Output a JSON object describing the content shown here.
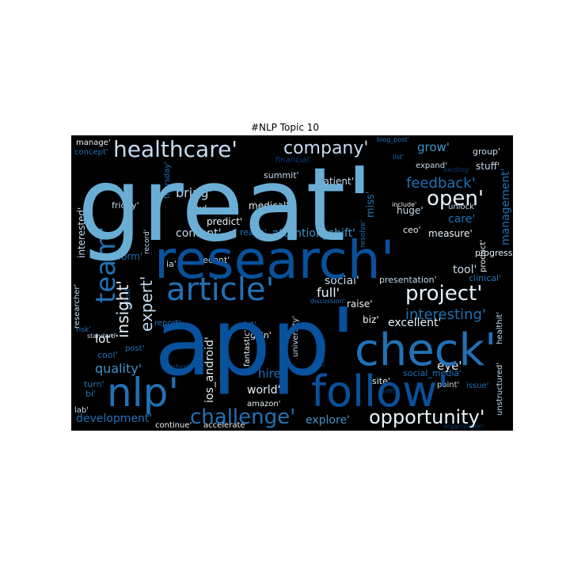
{
  "chart_data": {
    "type": "wordcloud",
    "title": "#NLP Topic 10",
    "background": "#000000",
    "palette": [
      "#eaf2f8",
      "#c6dbef",
      "#9ecae1",
      "#6baed6",
      "#4292c6",
      "#2171b5",
      "#08519c",
      "#084594",
      "#0b3e78",
      "#1c4f7d"
    ],
    "words": [
      {
        "text": "great'",
        "weight": 100,
        "color": "#6aaed6",
        "orientation": "horizontal"
      },
      {
        "text": "app'",
        "weight": 92,
        "color": "#08519c",
        "orientation": "horizontal"
      },
      {
        "text": "research'",
        "weight": 60,
        "color": "#08519c",
        "orientation": "horizontal"
      },
      {
        "text": "check'",
        "weight": 50,
        "color": "#2171b5",
        "orientation": "horizontal"
      },
      {
        "text": "follow'",
        "weight": 45,
        "color": "#08519c",
        "orientation": "horizontal"
      },
      {
        "text": "nlp'",
        "weight": 42,
        "color": "#2171b5",
        "orientation": "horizontal"
      },
      {
        "text": "article'",
        "weight": 35,
        "color": "#2171b5",
        "orientation": "horizontal"
      },
      {
        "text": "team'",
        "weight": 28,
        "color": "#2171b5",
        "orientation": "vertical"
      },
      {
        "text": "healthcare'",
        "weight": 24,
        "color": "#c6dbef",
        "orientation": "horizontal"
      },
      {
        "text": "company'",
        "weight": 20,
        "color": "#c6dbef",
        "orientation": "horizontal"
      },
      {
        "text": "open'",
        "weight": 22,
        "color": "#e8f1fa",
        "orientation": "horizontal"
      },
      {
        "text": "project'",
        "weight": 22,
        "color": "#e8f1fa",
        "orientation": "horizontal"
      },
      {
        "text": "opportunity'",
        "weight": 20,
        "color": "#eaf2f8",
        "orientation": "horizontal"
      },
      {
        "text": "challenge'",
        "weight": 20,
        "color": "#2171b5",
        "orientation": "horizontal"
      },
      {
        "text": "insight'",
        "weight": 18,
        "color": "#eaf2f8",
        "orientation": "vertical"
      },
      {
        "text": "expert'",
        "weight": 17,
        "color": "#c6dbef",
        "orientation": "vertical"
      },
      {
        "text": "feedback'",
        "weight": 16,
        "color": "#2171b5",
        "orientation": "horizontal"
      },
      {
        "text": "interesting'",
        "weight": 16,
        "color": "#2171b5",
        "orientation": "horizontal"
      },
      {
        "text": "grow'",
        "weight": 14,
        "color": "#4292c6",
        "orientation": "horizontal"
      },
      {
        "text": "bring'",
        "weight": 14,
        "color": "#c6dbef",
        "orientation": "horizontal"
      },
      {
        "text": "content'",
        "weight": 13,
        "color": "#c6dbef",
        "orientation": "horizontal"
      },
      {
        "text": "attention_shift'",
        "weight": 13,
        "color": "#4292c6",
        "orientation": "horizontal"
      },
      {
        "text": "full'",
        "weight": 13,
        "color": "#eaf2f8",
        "orientation": "horizontal"
      },
      {
        "text": "social'",
        "weight": 12,
        "color": "#c6dbef",
        "orientation": "horizontal"
      },
      {
        "text": "quality'",
        "weight": 12,
        "color": "#4292c6",
        "orientation": "horizontal"
      },
      {
        "text": "lot'",
        "weight": 12,
        "color": "#eaf2f8",
        "orientation": "horizontal"
      },
      {
        "text": "development'",
        "weight": 12,
        "color": "#2171b5",
        "orientation": "horizontal"
      },
      {
        "text": "explore'",
        "weight": 12,
        "color": "#4292c6",
        "orientation": "horizontal"
      },
      {
        "text": "eye'",
        "weight": 12,
        "color": "#eaf2f8",
        "orientation": "horizontal"
      },
      {
        "text": "tool'",
        "weight": 12,
        "color": "#c6dbef",
        "orientation": "horizontal"
      },
      {
        "text": "excellent'",
        "weight": 11,
        "color": "#eaf2f8",
        "orientation": "horizontal"
      },
      {
        "text": "world'",
        "weight": 11,
        "color": "#eaf2f8",
        "orientation": "horizontal"
      },
      {
        "text": "hire'",
        "weight": 11,
        "color": "#2171b5",
        "orientation": "horizontal"
      },
      {
        "text": "ios_android'",
        "weight": 11,
        "color": "#eaf2f8",
        "orientation": "vertical"
      },
      {
        "text": "management'",
        "weight": 11,
        "color": "#2171b5",
        "orientation": "vertical"
      },
      {
        "text": "care'",
        "weight": 11,
        "color": "#2171b5",
        "orientation": "horizontal"
      },
      {
        "text": "interested'",
        "weight": 10,
        "color": "#c6dbef",
        "orientation": "vertical"
      },
      {
        "text": "miss'",
        "weight": 10,
        "color": "#2171b5",
        "orientation": "vertical"
      },
      {
        "text": "measure'",
        "weight": 9,
        "color": "#eaf2f8",
        "orientation": "horizontal"
      },
      {
        "text": "presentation'",
        "weight": 9,
        "color": "#c6dbef",
        "orientation": "horizontal"
      },
      {
        "text": "progress'",
        "weight": 9,
        "color": "#eaf2f8",
        "orientation": "horizontal"
      },
      {
        "text": "transform'",
        "weight": 9,
        "color": "#2171b5",
        "orientation": "horizontal"
      },
      {
        "text": "biz'",
        "weight": 9,
        "color": "#eaf2f8",
        "orientation": "horizontal"
      },
      {
        "text": "raise'",
        "weight": 9,
        "color": "#eaf2f8",
        "orientation": "horizontal"
      },
      {
        "text": "huge'",
        "weight": 9,
        "color": "#c6dbef",
        "orientation": "horizontal"
      },
      {
        "text": "patient'",
        "weight": 9,
        "color": "#c6dbef",
        "orientation": "horizontal"
      },
      {
        "text": "summit'",
        "weight": 9,
        "color": "#c6dbef",
        "orientation": "horizontal"
      },
      {
        "text": "medical'",
        "weight": 9,
        "color": "#eaf2f8",
        "orientation": "horizontal"
      },
      {
        "text": "predict'",
        "weight": 9,
        "color": "#eaf2f8",
        "orientation": "horizontal"
      },
      {
        "text": "key'",
        "weight": 9,
        "color": "#eaf2f8",
        "orientation": "horizontal"
      },
      {
        "text": "friday'",
        "weight": 8,
        "color": "#c6dbef",
        "orientation": "horizontal"
      },
      {
        "text": "ceo'",
        "weight": 8,
        "color": "#eaf2f8",
        "orientation": "horizontal"
      },
      {
        "text": "recent'",
        "weight": 8,
        "color": "#c6dbef",
        "orientation": "horizontal"
      },
      {
        "text": "ia'",
        "weight": 8,
        "color": "#c6dbef",
        "orientation": "horizontal"
      },
      {
        "text": "reach'",
        "weight": 8,
        "color": "#2171b5",
        "orientation": "horizontal"
      },
      {
        "text": "expand'",
        "weight": 8,
        "color": "#c6dbef",
        "orientation": "horizontal"
      },
      {
        "text": "stuff'",
        "weight": 8,
        "color": "#c6dbef",
        "orientation": "horizontal"
      },
      {
        "text": "group'",
        "weight": 8,
        "color": "#c6dbef",
        "orientation": "horizontal"
      },
      {
        "text": "unlock'",
        "weight": 8,
        "color": "#c6dbef",
        "orientation": "horizontal"
      },
      {
        "text": "product'",
        "weight": 8,
        "color": "#eaf2f8",
        "orientation": "vertical"
      },
      {
        "text": "clinical'",
        "weight": 8,
        "color": "#2171b5",
        "orientation": "horizontal"
      },
      {
        "text": "healthit'",
        "weight": 8,
        "color": "#c6dbef",
        "orientation": "vertical"
      },
      {
        "text": "unstructured'",
        "weight": 8,
        "color": "#c6dbef",
        "orientation": "vertical"
      },
      {
        "text": "site'",
        "weight": 8,
        "color": "#eaf2f8",
        "orientation": "horizontal"
      },
      {
        "text": "point'",
        "weight": 8,
        "color": "#c6dbef",
        "orientation": "horizontal"
      },
      {
        "text": "issue'",
        "weight": 8,
        "color": "#2171b5",
        "orientation": "horizontal"
      },
      {
        "text": "social_media'",
        "weight": 8,
        "color": "#2171b5",
        "orientation": "horizontal"
      },
      {
        "text": "university'",
        "weight": 8,
        "color": "#c6dbef",
        "orientation": "vertical"
      },
      {
        "text": "gain'",
        "weight": 8,
        "color": "#eaf2f8",
        "orientation": "horizontal"
      },
      {
        "text": "hit'",
        "weight": 8,
        "color": "#2171b5",
        "orientation": "horizontal"
      },
      {
        "text": "fantastic'",
        "weight": 8,
        "color": "#eaf2f8",
        "orientation": "vertical"
      },
      {
        "text": "amazon'",
        "weight": 8,
        "color": "#eaf2f8",
        "orientation": "horizontal"
      },
      {
        "text": "continue'",
        "weight": 8,
        "color": "#eaf2f8",
        "orientation": "horizontal"
      },
      {
        "text": "accelerate'",
        "weight": 8,
        "color": "#eaf2f8",
        "orientation": "horizontal"
      },
      {
        "text": "report'",
        "weight": 8,
        "color": "#2171b5",
        "orientation": "horizontal"
      },
      {
        "text": "post'",
        "weight": 8,
        "color": "#2171b5",
        "orientation": "horizontal"
      },
      {
        "text": "cool'",
        "weight": 8,
        "color": "#2171b5",
        "orientation": "horizontal"
      },
      {
        "text": "turn'",
        "weight": 8,
        "color": "#2171b5",
        "orientation": "horizontal"
      },
      {
        "text": "bi'",
        "weight": 8,
        "color": "#2171b5",
        "orientation": "horizontal"
      },
      {
        "text": "lab'",
        "weight": 8,
        "color": "#c6dbef",
        "orientation": "horizontal"
      },
      {
        "text": "manage'",
        "weight": 8,
        "color": "#eaf2f8",
        "orientation": "horizontal"
      },
      {
        "text": "concept'",
        "weight": 8,
        "color": "#2171b5",
        "orientation": "horizontal"
      },
      {
        "text": "researcher'",
        "weight": 8,
        "color": "#c6dbef",
        "orientation": "vertical"
      },
      {
        "text": "talent'",
        "weight": 7,
        "color": "#2171b5",
        "orientation": "vertical"
      },
      {
        "text": "record'",
        "weight": 7,
        "color": "#c6dbef",
        "orientation": "vertical"
      },
      {
        "text": "thursday'",
        "weight": 7,
        "color": "#2171b5",
        "orientation": "vertical"
      },
      {
        "text": "resolve'",
        "weight": 7,
        "color": "#2171b5",
        "orientation": "vertical"
      },
      {
        "text": "tuesday'",
        "weight": 7,
        "color": "#0b3e78",
        "orientation": "vertical"
      },
      {
        "text": "discussion'",
        "weight": 6,
        "color": "#2171b5",
        "orientation": "horizontal"
      },
      {
        "text": "center'",
        "weight": 7,
        "color": "#0b3e78",
        "orientation": "horizontal"
      },
      {
        "text": "aim'",
        "weight": 7,
        "color": "#0b3e78",
        "orientation": "horizontal"
      },
      {
        "text": "financial'",
        "weight": 7,
        "color": "#0b3e78",
        "orientation": "horizontal"
      },
      {
        "text": "blog_post'",
        "weight": 6,
        "color": "#2171b5",
        "orientation": "horizontal"
      },
      {
        "text": "list'",
        "weight": 6,
        "color": "#2171b5",
        "orientation": "horizontal"
      },
      {
        "text": "exciting'",
        "weight": 6,
        "color": "#0b3e78",
        "orientation": "horizontal"
      },
      {
        "text": "include'",
        "weight": 6,
        "color": "#eaf2f8",
        "orientation": "horizontal"
      },
      {
        "text": "standard'",
        "weight": 6,
        "color": "#c6dbef",
        "orientation": "horizontal"
      },
      {
        "text": "risk'",
        "weight": 6,
        "color": "#2171b5",
        "orientation": "horizontal"
      },
      {
        "text": "organization'",
        "weight": 6,
        "color": "#0b3e78",
        "orientation": "horizontal"
      },
      {
        "text": "ipm'",
        "weight": 6,
        "color": "#0b3e78",
        "orientation": "vertical"
      }
    ]
  }
}
